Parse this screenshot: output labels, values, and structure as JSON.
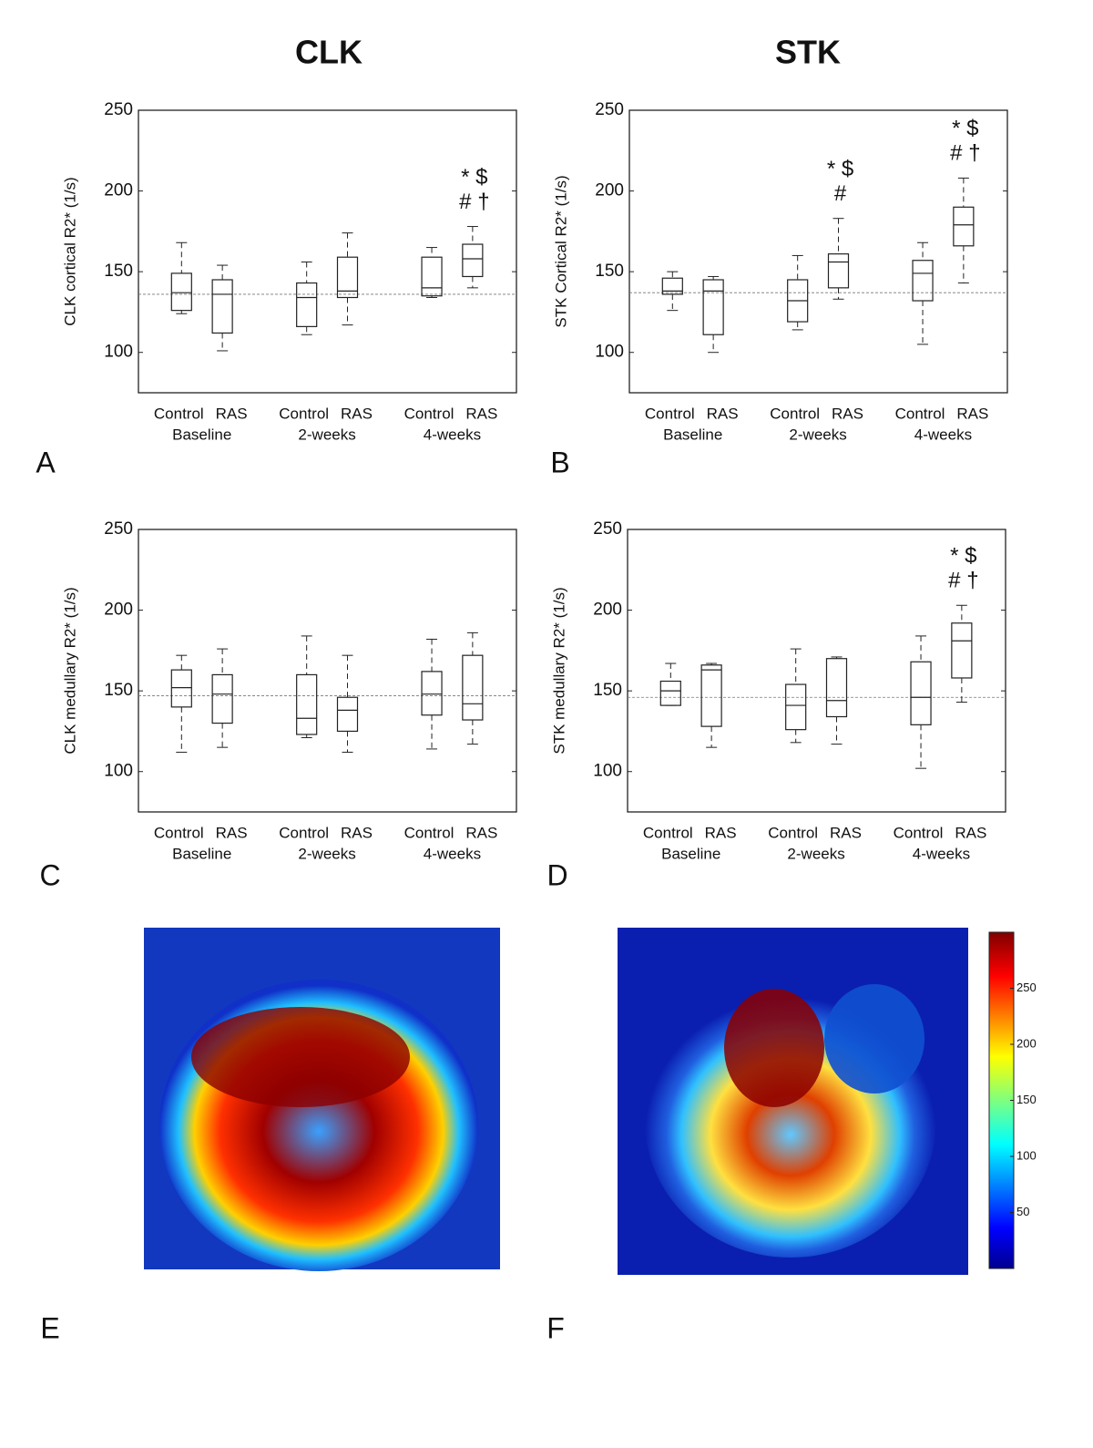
{
  "headings": [
    "CLK",
    "STK"
  ],
  "panel_labels": [
    "A",
    "B",
    "C",
    "D",
    "E",
    "F"
  ],
  "chart_data": [
    {
      "type": "box",
      "ylabel": "CLK cortical R2* (1/s)",
      "ylim": [
        75,
        250
      ],
      "yticks": [
        100,
        150,
        200,
        250
      ],
      "categories": [
        "Control",
        "RAS",
        "Control",
        "RAS",
        "Control",
        "RAS"
      ],
      "groups": [
        "Baseline",
        "2-weeks",
        "4-weeks"
      ],
      "reference": 136,
      "boxes": [
        {
          "min": 124,
          "q1": 126,
          "median": 137,
          "q3": 149,
          "max": 168
        },
        {
          "min": 101,
          "q1": 112,
          "median": 136,
          "q3": 145,
          "max": 154
        },
        {
          "min": 111,
          "q1": 116,
          "median": 134,
          "q3": 143,
          "max": 156
        },
        {
          "min": 117,
          "q1": 134,
          "median": 138,
          "q3": 159,
          "max": 174
        },
        {
          "min": 134,
          "q1": 135,
          "median": 140,
          "q3": 159,
          "max": 165
        },
        {
          "min": 140,
          "q1": 147,
          "median": 158,
          "q3": 167,
          "max": 178
        }
      ],
      "annotations": [
        null,
        null,
        null,
        null,
        null,
        [
          "* $",
          "# †"
        ]
      ]
    },
    {
      "type": "box",
      "ylabel": "STK Cortical R2* (1/s)",
      "ylim": [
        75,
        250
      ],
      "yticks": [
        100,
        150,
        200,
        250
      ],
      "categories": [
        "Control",
        "RAS",
        "Control",
        "RAS",
        "Control",
        "RAS"
      ],
      "groups": [
        "Baseline",
        "2-weeks",
        "4-weeks"
      ],
      "reference": 137,
      "boxes": [
        {
          "min": 126,
          "q1": 136,
          "median": 138,
          "q3": 146,
          "max": 150
        },
        {
          "min": 100,
          "q1": 111,
          "median": 138,
          "q3": 145,
          "max": 147
        },
        {
          "min": 114,
          "q1": 119,
          "median": 132,
          "q3": 145,
          "max": 160
        },
        {
          "min": 133,
          "q1": 140,
          "median": 156,
          "q3": 161,
          "max": 183
        },
        {
          "min": 105,
          "q1": 132,
          "median": 149,
          "q3": 157,
          "max": 168
        },
        {
          "min": 143,
          "q1": 166,
          "median": 179,
          "q3": 190,
          "max": 208
        }
      ],
      "annotations": [
        null,
        null,
        null,
        [
          "* $",
          "#"
        ],
        null,
        [
          "* $",
          "# †"
        ]
      ]
    },
    {
      "type": "box",
      "ylabel": "CLK medullary R2* (1/s)",
      "ylim": [
        75,
        250
      ],
      "yticks": [
        100,
        150,
        200,
        250
      ],
      "categories": [
        "Control",
        "RAS",
        "Control",
        "RAS",
        "Control",
        "RAS"
      ],
      "groups": [
        "Baseline",
        "2-weeks",
        "4-weeks"
      ],
      "reference": 147,
      "boxes": [
        {
          "min": 112,
          "q1": 140,
          "median": 152,
          "q3": 163,
          "max": 172
        },
        {
          "min": 115,
          "q1": 130,
          "median": 148,
          "q3": 160,
          "max": 176
        },
        {
          "min": 121,
          "q1": 123,
          "median": 133,
          "q3": 160,
          "max": 184
        },
        {
          "min": 112,
          "q1": 125,
          "median": 138,
          "q3": 146,
          "max": 172
        },
        {
          "min": 114,
          "q1": 135,
          "median": 148,
          "q3": 162,
          "max": 182
        },
        {
          "min": 117,
          "q1": 132,
          "median": 142,
          "q3": 172,
          "max": 186
        }
      ],
      "annotations": [
        null,
        null,
        null,
        null,
        null,
        null
      ]
    },
    {
      "type": "box",
      "ylabel": "STK medullary R2* (1/s)",
      "ylim": [
        75,
        250
      ],
      "yticks": [
        100,
        150,
        200,
        250
      ],
      "categories": [
        "Control",
        "RAS",
        "Control",
        "RAS",
        "Control",
        "RAS"
      ],
      "groups": [
        "Baseline",
        "2-weeks",
        "4-weeks"
      ],
      "reference": 146,
      "boxes": [
        {
          "min": 141,
          "q1": 141,
          "median": 150,
          "q3": 156,
          "max": 167
        },
        {
          "min": 115,
          "q1": 128,
          "median": 163,
          "q3": 166,
          "max": 167
        },
        {
          "min": 118,
          "q1": 126,
          "median": 141,
          "q3": 154,
          "max": 176
        },
        {
          "min": 117,
          "q1": 134,
          "median": 144,
          "q3": 170,
          "max": 171
        },
        {
          "min": 102,
          "q1": 129,
          "median": 146,
          "q3": 168,
          "max": 184
        },
        {
          "min": 143,
          "q1": 158,
          "median": 181,
          "q3": 192,
          "max": 203
        }
      ],
      "annotations": [
        null,
        null,
        null,
        null,
        null,
        [
          "* $",
          "# †"
        ]
      ]
    }
  ],
  "colorbar": {
    "lim": [
      0,
      300
    ],
    "ticks": [
      50,
      100,
      150,
      200,
      250
    ]
  }
}
